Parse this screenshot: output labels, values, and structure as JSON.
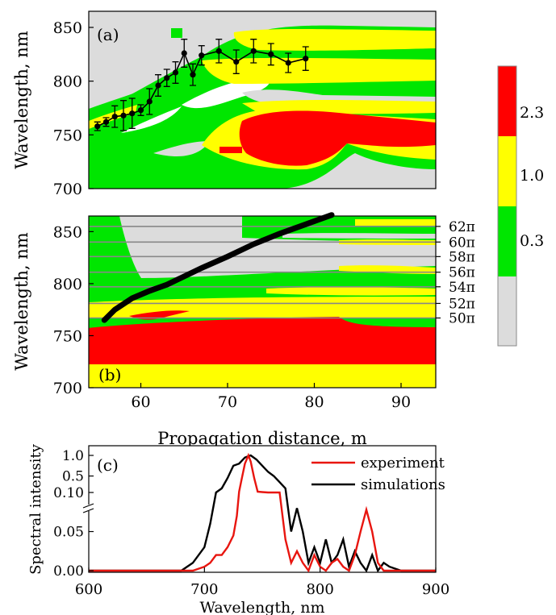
{
  "chart_data": [
    {
      "type": "heatmap",
      "panel_label": "(a)",
      "ylabel": "Wavelength, nm",
      "ylim": [
        700,
        865
      ],
      "xlim": [
        54,
        94
      ],
      "yticks": [
        700,
        750,
        800,
        850
      ],
      "error_series": {
        "x": [
          55,
          56,
          57,
          58,
          59,
          60,
          61,
          62,
          63,
          64,
          65,
          66,
          67,
          69,
          71,
          73,
          75,
          77,
          79
        ],
        "y": [
          758,
          762,
          767,
          768,
          770,
          773,
          781,
          796,
          803,
          808,
          826,
          806,
          824,
          828,
          818,
          828,
          825,
          817,
          821
        ],
        "err": [
          4,
          4,
          10,
          14,
          14,
          5,
          12,
          10,
          8,
          10,
          13,
          10,
          9,
          11,
          11,
          11,
          10,
          9,
          11
        ]
      }
    },
    {
      "type": "heatmap",
      "panel_label": "(b)",
      "ylabel": "Wavelength, nm",
      "xlabel": "Propagation distance, m",
      "xlim": [
        54,
        94
      ],
      "ylim": [
        700,
        865
      ],
      "xticks": [
        60,
        70,
        80,
        90
      ],
      "yticks": [
        700,
        750,
        800,
        850
      ],
      "phase_lines": [
        {
          "label": "50π",
          "y": 767
        },
        {
          "label": "52π",
          "y": 781
        },
        {
          "label": "54π",
          "y": 797
        },
        {
          "label": "56π",
          "y": 811
        },
        {
          "label": "58π",
          "y": 826
        },
        {
          "label": "60π",
          "y": 840
        },
        {
          "label": "62π",
          "y": 855
        }
      ],
      "curve": {
        "x": [
          55.8,
          57,
          59,
          61,
          63,
          65,
          67,
          70,
          73,
          76,
          79,
          82
        ],
        "y": [
          765,
          775,
          786,
          793,
          799,
          807,
          815,
          826,
          838,
          848,
          857,
          866
        ]
      }
    },
    {
      "type": "line",
      "panel_label": "(c)",
      "ylabel": "Spectral intensity",
      "xlabel": "Wavelength, nm",
      "xlim": [
        600,
        900
      ],
      "xticks": [
        600,
        700,
        800,
        900
      ],
      "yticks_lower": [
        "0.00",
        "0.05",
        "0.10"
      ],
      "yticks_upper": [
        "0.5",
        "1.0"
      ],
      "series": [
        {
          "name": "experiment",
          "color": "#e8150f",
          "x": [
            600,
            690,
            700,
            705,
            710,
            715,
            720,
            725,
            728,
            730,
            732,
            735,
            738,
            740,
            743,
            746,
            750,
            755,
            760,
            765,
            770,
            775,
            780,
            785,
            790,
            795,
            800,
            805,
            810,
            815,
            820,
            825,
            830,
            835,
            840,
            845,
            850,
            855,
            860,
            870,
            900
          ],
          "y": [
            0.0,
            0.0,
            0.005,
            0.01,
            0.02,
            0.02,
            0.03,
            0.045,
            0.07,
            0.12,
            0.4,
            0.8,
            1.0,
            0.85,
            0.45,
            0.12,
            0.11,
            0.1,
            0.1,
            0.1,
            0.04,
            0.01,
            0.025,
            0.01,
            0.0,
            0.02,
            0.005,
            0.0,
            0.01,
            0.015,
            0.005,
            0.0,
            0.02,
            0.05,
            0.078,
            0.05,
            0.01,
            0.0,
            0.0,
            0.0,
            0.0
          ]
        },
        {
          "name": "simulations",
          "color": "#000000",
          "x": [
            600,
            680,
            690,
            700,
            705,
            710,
            715,
            720,
            725,
            730,
            735,
            740,
            745,
            750,
            755,
            760,
            765,
            770,
            775,
            780,
            785,
            790,
            795,
            800,
            805,
            810,
            815,
            820,
            825,
            830,
            835,
            840,
            845,
            850,
            855,
            860,
            870,
            900
          ],
          "y": [
            0.0,
            0.0,
            0.01,
            0.03,
            0.06,
            0.1,
            0.2,
            0.45,
            0.75,
            0.8,
            0.95,
            1.0,
            0.9,
            0.75,
            0.6,
            0.5,
            0.35,
            0.2,
            0.05,
            0.08,
            0.05,
            0.01,
            0.03,
            0.01,
            0.04,
            0.01,
            0.02,
            0.04,
            0.005,
            0.025,
            0.01,
            0.0,
            0.02,
            0.0,
            0.01,
            0.005,
            0.0,
            0.0
          ]
        }
      ]
    }
  ],
  "colorbar": {
    "labels": [
      "2.3",
      "1.0",
      "0.3"
    ],
    "colors": [
      "#ff0000",
      "#ffff00",
      "#00e600",
      "#dcdcdc"
    ]
  }
}
